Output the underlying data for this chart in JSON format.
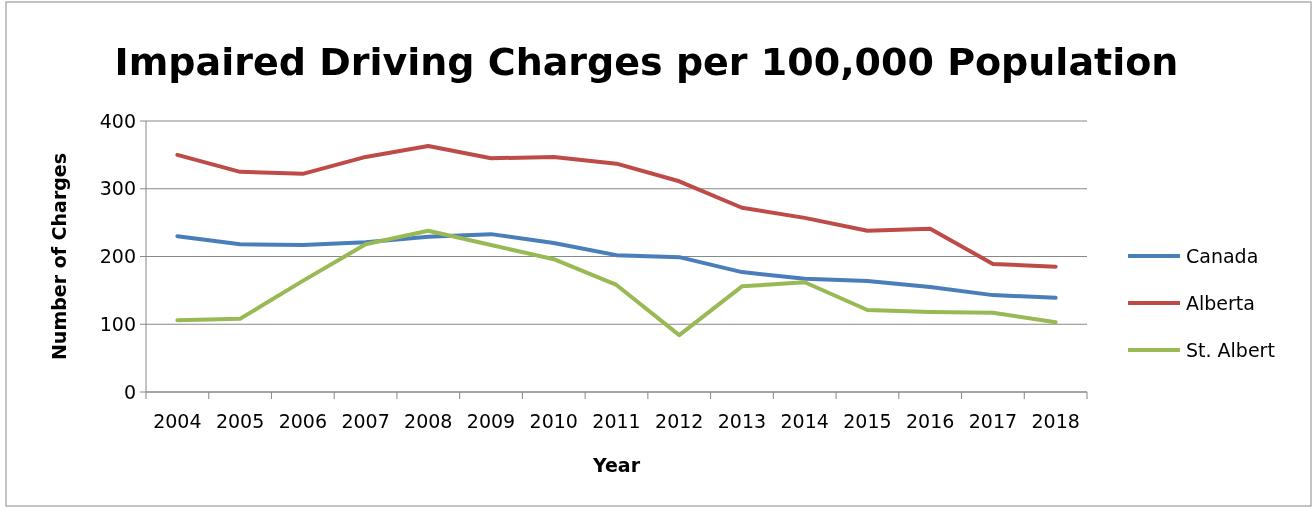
{
  "chart_data": {
    "type": "line",
    "title": "Impaired Driving Charges per 100,000 Population",
    "xlabel": "Year",
    "ylabel": "Number of Charges",
    "categories": [
      "2004",
      "2005",
      "2006",
      "2007",
      "2008",
      "2009",
      "2010",
      "2011",
      "2012",
      "2013",
      "2014",
      "2015",
      "2016",
      "2017",
      "2018"
    ],
    "series": [
      {
        "name": "Canada",
        "color": "#4a7ebb",
        "values": [
          230,
          218,
          217,
          221,
          229,
          233,
          220,
          202,
          199,
          177,
          167,
          164,
          155,
          143,
          139
        ]
      },
      {
        "name": "Alberta",
        "color": "#be4b48",
        "values": [
          350,
          325,
          322,
          347,
          363,
          345,
          347,
          337,
          311,
          272,
          257,
          238,
          241,
          189,
          185
        ]
      },
      {
        "name": "St. Albert",
        "color": "#98b954",
        "values": [
          106,
          108,
          164,
          218,
          238,
          217,
          196,
          158,
          84,
          156,
          162,
          121,
          118,
          117,
          103
        ]
      }
    ],
    "ylim": [
      0,
      400
    ],
    "yticks": [
      0,
      100,
      200,
      300,
      400
    ],
    "grid": "y",
    "legend": "right",
    "marker": "none",
    "line_style": "solid"
  }
}
